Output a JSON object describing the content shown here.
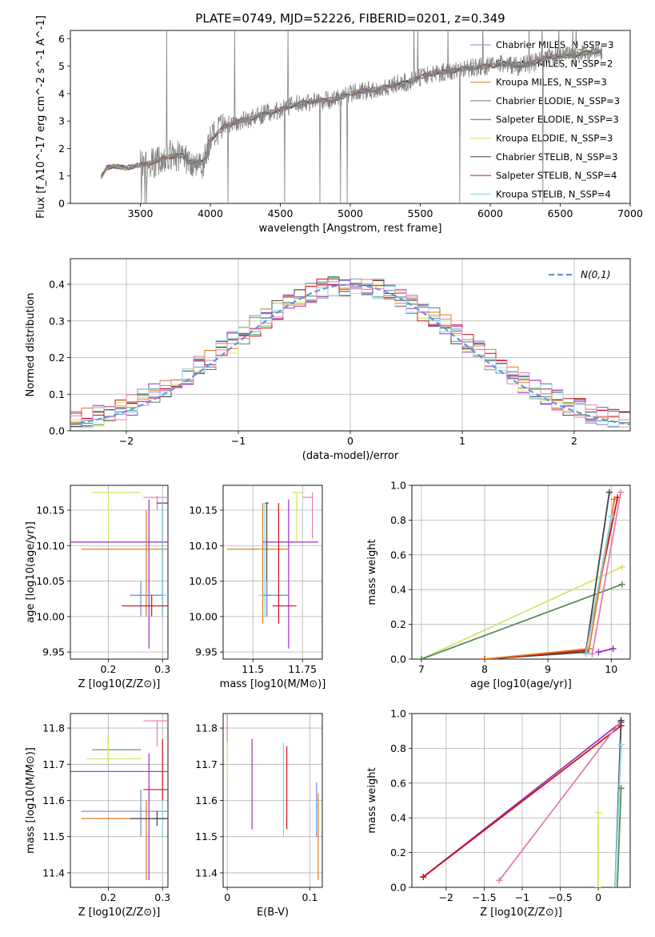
{
  "title": "PLATE=0749, MJD=52226, FIBERID=0201, z=0.349",
  "colors": {
    "chabrier_miles": "#6b8fd6",
    "salpeter_miles": "#d6c93a",
    "kroupa_miles": "#e07b20",
    "chabrier_elodie": "#5a8a5a",
    "salpeter_elodie": "#9a2fbf",
    "kroupa_elodie": "#d4e66a",
    "chabrier_stelib": "#444444",
    "salpeter_stelib": "#c81414",
    "kroupa_stelib": "#86d3e3",
    "extra_pink": "#e57bb5",
    "gaussian": "#6495dc",
    "data": "#808080"
  },
  "chart_data": [
    {
      "type": "line",
      "panel": "spectrum",
      "xlabel": "wavelength [Angstrom, rest frame]",
      "ylabel": "Flux [f_λ10^-17 erg cm^-2 s^-1 A^-1]",
      "xlim": [
        3000,
        7000
      ],
      "ylim": [
        0,
        6.3
      ],
      "xticks": [
        3500,
        4000,
        4500,
        5000,
        5500,
        6000,
        6500,
        7000
      ],
      "yticks": [
        0,
        1,
        2,
        3,
        4,
        5,
        6
      ],
      "legend_position": "upper-right",
      "legend": [
        {
          "label": "Chabrier MILES, N_SSP=3",
          "color_key": "chabrier_miles"
        },
        {
          "label": "Salpeter MILES, N_SSP=2",
          "color_key": "salpeter_miles"
        },
        {
          "label": "Kroupa MILES, N_SSP=3",
          "color_key": "kroupa_miles"
        },
        {
          "label": "Chabrier ELODIE, N_SSP=3",
          "color_key": "chabrier_elodie"
        },
        {
          "label": "Salpeter ELODIE, N_SSP=3",
          "color_key": "salpeter_elodie"
        },
        {
          "label": "Kroupa ELODIE, N_SSP=3",
          "color_key": "kroupa_elodie"
        },
        {
          "label": "Chabrier STELIB, N_SSP=3",
          "color_key": "chabrier_stelib"
        },
        {
          "label": "Salpeter STELIB, N_SSP=4",
          "color_key": "salpeter_stelib"
        },
        {
          "label": "Kroupa STELIB, N_SSP=4",
          "color_key": "kroupa_stelib"
        }
      ],
      "continuum": [
        [
          3220,
          0.95
        ],
        [
          3260,
          1.3
        ],
        [
          3300,
          1.35
        ],
        [
          3400,
          1.3
        ],
        [
          3500,
          1.4
        ],
        [
          3600,
          1.5
        ],
        [
          3700,
          1.7
        ],
        [
          3800,
          1.75
        ],
        [
          3850,
          1.5
        ],
        [
          3950,
          1.5
        ],
        [
          4000,
          2.3
        ],
        [
          4100,
          2.8
        ],
        [
          4200,
          3.0
        ],
        [
          4300,
          3.1
        ],
        [
          4400,
          3.3
        ],
        [
          4500,
          3.4
        ],
        [
          4600,
          3.6
        ],
        [
          4700,
          3.7
        ],
        [
          4800,
          3.75
        ],
        [
          4900,
          3.8
        ],
        [
          5000,
          4.0
        ],
        [
          5100,
          4.1
        ],
        [
          5200,
          4.15
        ],
        [
          5300,
          4.3
        ],
        [
          5400,
          4.4
        ],
        [
          5500,
          4.6
        ],
        [
          5600,
          4.75
        ],
        [
          5700,
          4.8
        ],
        [
          5800,
          4.9
        ],
        [
          5900,
          4.95
        ],
        [
          6000,
          5.0
        ],
        [
          6100,
          5.1
        ],
        [
          6200,
          5.0
        ],
        [
          6300,
          5.1
        ],
        [
          6400,
          5.3
        ],
        [
          6500,
          5.35
        ],
        [
          6600,
          5.4
        ],
        [
          6700,
          5.5
        ],
        [
          6800,
          5.55
        ]
      ]
    },
    {
      "type": "line",
      "panel": "residuals",
      "xlabel": "(data-model)/error",
      "ylabel": "Normed distribution",
      "xlim": [
        -2.5,
        2.5
      ],
      "ylim": [
        0,
        0.47
      ],
      "xticks": [
        -2,
        -1,
        0,
        1,
        2
      ],
      "yticks": [
        0.0,
        0.1,
        0.2,
        0.3,
        0.4
      ],
      "legend": [
        {
          "label": "N(0,1)",
          "color_key": "gaussian",
          "style": "dashed"
        }
      ],
      "legend_position": "upper-right",
      "grid": true
    },
    {
      "type": "scatter",
      "panel": "age_vs_Z",
      "xlabel": "Z [log10(Z/Z⊙)]",
      "ylabel": "age [log10(age/yr)]",
      "xlim": [
        0.13,
        0.31
      ],
      "ylim": [
        9.94,
        10.185
      ],
      "xticks": [
        0.2,
        0.3
      ],
      "yticks": [
        9.95,
        10.0,
        10.05,
        10.1,
        10.15
      ],
      "grid": true,
      "points": [
        {
          "color_key": "kroupa_elodie",
          "x": 0.2,
          "y": 10.175,
          "xerr": [
            0.17,
            0.26
          ],
          "yerr": [
            10.105,
            10.175
          ]
        },
        {
          "color_key": "extra_pink",
          "x": 0.29,
          "y": 10.168,
          "xerr": [
            0.265,
            0.31
          ],
          "yerr": [
            10.15,
            10.17
          ]
        },
        {
          "color_key": "salpeter_elodie",
          "x": 0.275,
          "y": 10.105,
          "xerr": [
            0.13,
            0.31
          ],
          "yerr": [
            9.955,
            10.165
          ]
        },
        {
          "color_key": "kroupa_miles",
          "x": 0.27,
          "y": 10.095,
          "xerr": [
            0.15,
            0.31
          ],
          "yerr": [
            10.0,
            10.15
          ]
        },
        {
          "color_key": "chabrier_stelib",
          "x": 0.3,
          "y": 10.16,
          "xerr": [
            0.29,
            0.31
          ],
          "yerr": [
            10.0,
            10.16
          ]
        },
        {
          "color_key": "kroupa_stelib",
          "x": 0.3,
          "y": 10.03,
          "xerr": [
            0.25,
            0.31
          ],
          "yerr": [
            10.0,
            10.16
          ]
        },
        {
          "color_key": "chabrier_miles",
          "x": 0.26,
          "y": 10.03,
          "xerr": [
            0.24,
            0.3
          ],
          "yerr": [
            10.0,
            10.05
          ]
        },
        {
          "color_key": "salpeter_stelib",
          "x": 0.28,
          "y": 10.015,
          "xerr": [
            0.225,
            0.31
          ],
          "yerr": [
            10.0,
            10.03
          ]
        }
      ]
    },
    {
      "type": "scatter",
      "panel": "age_vs_mass",
      "xlabel": "mass [log10(M/M⊙)]",
      "ylabel": "",
      "xlim": [
        11.35,
        11.85
      ],
      "ylim": [
        9.94,
        10.185
      ],
      "xticks": [
        11.5,
        11.75
      ],
      "yticks": [
        9.95,
        10.0,
        10.05,
        10.1,
        10.15
      ],
      "grid": true,
      "points": [
        {
          "color_key": "kroupa_elodie",
          "x": 11.72,
          "y": 10.175,
          "xerr": [
            11.7,
            11.76
          ],
          "yerr": [
            10.105,
            10.175
          ]
        },
        {
          "color_key": "extra_pink",
          "x": 11.8,
          "y": 10.168,
          "xerr": [
            11.75,
            11.8
          ],
          "yerr": [
            10.11,
            10.175
          ]
        },
        {
          "color_key": "salpeter_elodie",
          "x": 11.68,
          "y": 10.105,
          "xerr": [
            11.55,
            11.83
          ],
          "yerr": [
            9.955,
            10.165
          ]
        },
        {
          "color_key": "kroupa_miles",
          "x": 11.55,
          "y": 10.095,
          "xerr": [
            11.37,
            11.68
          ],
          "yerr": [
            9.99,
            10.16
          ]
        },
        {
          "color_key": "chabrier_stelib",
          "x": 11.57,
          "y": 10.16,
          "xerr": [
            11.56,
            11.58
          ],
          "yerr": [
            10.0,
            10.16
          ]
        },
        {
          "color_key": "kroupa_stelib",
          "x": 11.56,
          "y": 10.03,
          "xerr": [
            11.53,
            11.67
          ],
          "yerr": [
            10.0,
            10.16
          ]
        },
        {
          "color_key": "chabrier_miles",
          "x": 11.57,
          "y": 10.03,
          "xerr": [
            11.55,
            11.68
          ],
          "yerr": [
            10.0,
            10.05
          ]
        },
        {
          "color_key": "salpeter_stelib",
          "x": 11.63,
          "y": 10.015,
          "xerr": [
            11.6,
            11.72
          ],
          "yerr": [
            9.99,
            10.16
          ]
        }
      ]
    },
    {
      "type": "line",
      "panel": "massweight_vs_age",
      "xlabel": "age [log10(age/yr)]",
      "ylabel": "mass weight",
      "xlim": [
        6.85,
        10.3
      ],
      "ylim": [
        0,
        1.0
      ],
      "xticks": [
        7,
        8,
        9,
        10
      ],
      "yticks": [
        0.0,
        0.2,
        0.4,
        0.6,
        0.8,
        1.0
      ],
      "grid": true,
      "series": [
        {
          "color_key": "kroupa_elodie",
          "x": [
            7.0,
            10.17
          ],
          "y": [
            0.0,
            0.53
          ]
        },
        {
          "color_key": "chabrier_elodie",
          "x": [
            7.0,
            10.17
          ],
          "y": [
            0.0,
            0.43
          ]
        },
        {
          "color_key": "chabrier_stelib",
          "x": [
            8.0,
            9.6,
            9.97
          ],
          "y": [
            0.0,
            0.04,
            0.96
          ]
        },
        {
          "color_key": "salpeter_stelib",
          "x": [
            8.0,
            9.6,
            10.1
          ],
          "y": [
            0.0,
            0.05,
            0.93
          ]
        },
        {
          "color_key": "kroupa_miles",
          "x": [
            8.0,
            9.65,
            10.05
          ],
          "y": [
            0.0,
            0.06,
            0.92
          ]
        },
        {
          "color_key": "extra_pink",
          "x": [
            9.7,
            10.15
          ],
          "y": [
            0.03,
            0.96
          ]
        },
        {
          "color_key": "kroupa_stelib",
          "x": [
            9.6,
            10.0
          ],
          "y": [
            0.03,
            0.82
          ]
        },
        {
          "color_key": "salpeter_elodie",
          "x": [
            9.8,
            10.03
          ],
          "y": [
            0.04,
            0.06
          ]
        }
      ]
    },
    {
      "type": "scatter",
      "panel": "mass_vs_Z",
      "xlabel": "Z [log10(Z/Z⊙)]",
      "ylabel": "mass [log10(M/M⊙)]",
      "xlim": [
        0.13,
        0.31
      ],
      "ylim": [
        11.36,
        11.84
      ],
      "xticks": [
        0.2,
        0.3
      ],
      "yticks": [
        11.4,
        11.5,
        11.6,
        11.7,
        11.8
      ],
      "grid": true,
      "points": [
        {
          "color_key": "extra_pink",
          "x": 0.29,
          "y": 11.82,
          "xerr": [
            0.265,
            0.31
          ],
          "yerr": [
            11.75,
            11.82
          ]
        },
        {
          "color_key": "chabrier_elodie",
          "x": 0.2,
          "y": 11.74,
          "xerr": [
            0.17,
            0.26
          ],
          "yerr": [
            11.7,
            11.775
          ]
        },
        {
          "color_key": "kroupa_elodie",
          "x": 0.2,
          "y": 11.715,
          "xerr": [
            0.16,
            0.26
          ],
          "yerr": [
            11.7,
            11.775
          ]
        },
        {
          "color_key": "salpeter_elodie",
          "x": 0.275,
          "y": 11.68,
          "xerr": [
            0.13,
            0.31
          ],
          "yerr": [
            11.38,
            11.73
          ]
        },
        {
          "color_key": "salpeter_stelib",
          "x": 0.3,
          "y": 11.63,
          "xerr": [
            0.265,
            0.31
          ],
          "yerr": [
            11.6,
            11.77
          ]
        },
        {
          "color_key": "chabrier_miles",
          "x": 0.26,
          "y": 11.57,
          "xerr": [
            0.15,
            0.31
          ],
          "yerr": [
            11.5,
            11.63
          ]
        },
        {
          "color_key": "kroupa_miles",
          "x": 0.27,
          "y": 11.55,
          "xerr": [
            0.15,
            0.31
          ],
          "yerr": [
            11.38,
            11.6
          ]
        },
        {
          "color_key": "kroupa_stelib",
          "x": 0.3,
          "y": 11.55,
          "xerr": [
            0.25,
            0.31
          ],
          "yerr": [
            11.5,
            11.6
          ]
        },
        {
          "color_key": "chabrier_stelib",
          "x": 0.29,
          "y": 11.55,
          "xerr": [
            0.24,
            0.31
          ],
          "yerr": [
            11.53,
            11.57
          ]
        }
      ]
    },
    {
      "type": "scatter",
      "panel": "mass_vs_ebv",
      "xlabel": "E(B-V)",
      "ylabel": "",
      "xlim": [
        -0.005,
        0.115
      ],
      "ylim": [
        11.36,
        11.84
      ],
      "xticks": [
        0.0,
        0.1
      ],
      "yticks": [
        11.4,
        11.5,
        11.6,
        11.7,
        11.8
      ],
      "grid": true,
      "points": [
        {
          "color_key": "extra_pink",
          "x": 0.0,
          "y": 11.82,
          "yerr": [
            11.76,
            11.84
          ]
        },
        {
          "color_key": "kroupa_elodie",
          "x": 0.0,
          "y": 11.72,
          "yerr": [
            11.67,
            11.76
          ]
        },
        {
          "color_key": "salpeter_elodie",
          "x": 0.03,
          "y": 11.68,
          "yerr": [
            11.52,
            11.77
          ]
        },
        {
          "color_key": "kroupa_stelib",
          "x": 0.068,
          "y": 11.55,
          "yerr": [
            11.5,
            11.76
          ]
        },
        {
          "color_key": "salpeter_stelib",
          "x": 0.072,
          "y": 11.63,
          "yerr": [
            11.52,
            11.75
          ]
        },
        {
          "color_key": "chabrier_miles",
          "x": 0.108,
          "y": 11.57,
          "yerr": [
            11.5,
            11.65
          ]
        },
        {
          "color_key": "kroupa_miles",
          "x": 0.11,
          "y": 11.55,
          "yerr": [
            11.38,
            11.62
          ]
        }
      ]
    },
    {
      "type": "line",
      "panel": "massweight_vs_Z",
      "xlabel": "Z [log10(Z/Z⊙)]",
      "ylabel": "mass weight",
      "xlim": [
        -2.45,
        0.42
      ],
      "ylim": [
        0,
        1.0
      ],
      "xticks": [
        -2.0,
        -1.5,
        -1.0,
        -0.5,
        0.0
      ],
      "yticks": [
        0.0,
        0.2,
        0.4,
        0.6,
        0.8,
        1.0
      ],
      "grid": true,
      "series": [
        {
          "color_key": "salpeter_elodie",
          "x": [
            -2.3,
            0.3
          ],
          "y": [
            0.06,
            0.95
          ]
        },
        {
          "color_key": "salpeter_stelib",
          "x": [
            -2.3,
            0.3
          ],
          "y": [
            0.06,
            0.93
          ]
        },
        {
          "color_key": "extra_pink",
          "x": [
            -1.3,
            0.3
          ],
          "y": [
            0.04,
            0.96
          ]
        },
        {
          "color_key": "chabrier_stelib",
          "x": [
            0.22,
            0.3
          ],
          "y": [
            0.0,
            0.96
          ]
        },
        {
          "color_key": "kroupa_stelib",
          "x": [
            0.22,
            0.3
          ],
          "y": [
            0.0,
            0.82
          ]
        },
        {
          "color_key": "chabrier_elodie",
          "x": [
            0.25,
            0.3
          ],
          "y": [
            0.0,
            0.57
          ]
        },
        {
          "color_key": "kroupa_elodie",
          "x": [
            0.0,
            0.0
          ],
          "y": [
            0.0,
            0.43
          ]
        }
      ]
    }
  ]
}
